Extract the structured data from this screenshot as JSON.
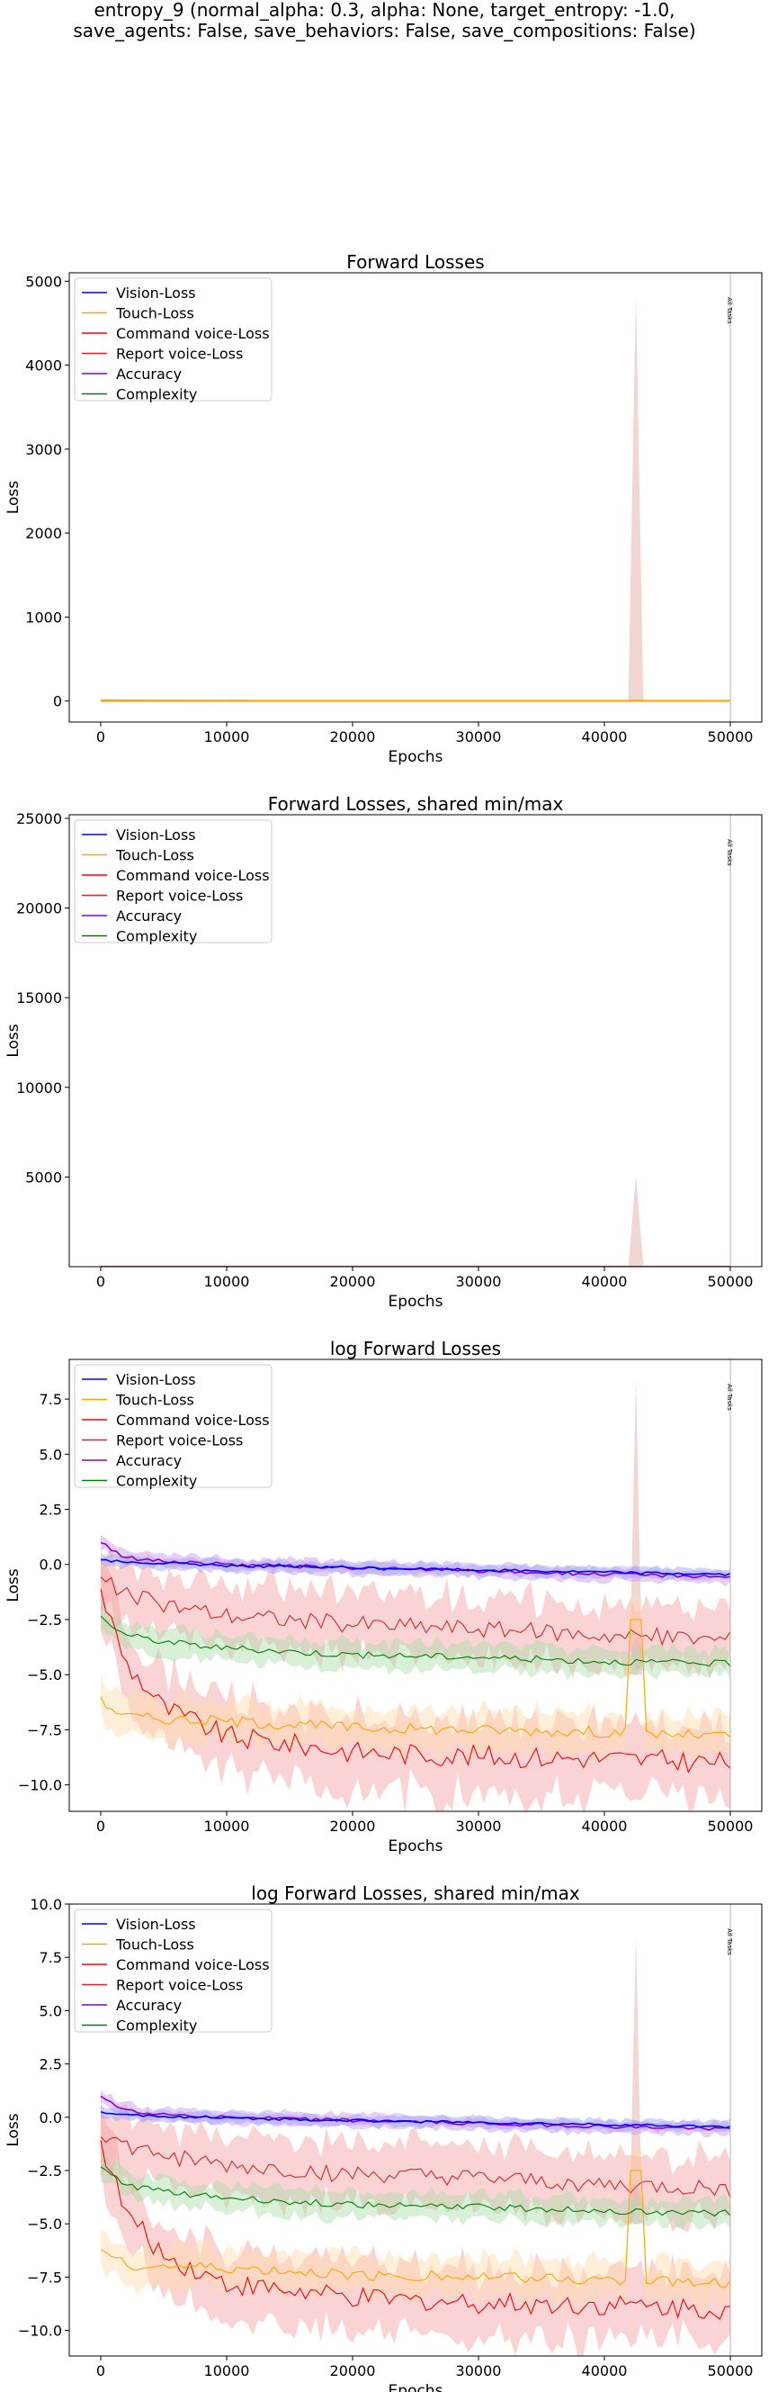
{
  "suptitle": {
    "line1": "entropy_9 (normal_alpha: 0.3, alpha: None, target_entropy: -1.0,",
    "line2": "save_agents: False, save_behaviors: False, save_compositions: False)"
  },
  "legend": [
    "Vision-Loss",
    "Touch-Loss",
    "Command voice-Loss",
    "Report voice-Loss",
    "Accuracy",
    "Complexity"
  ],
  "colors": {
    "Vision-Loss": "#0000ff",
    "Touch-Loss": "#ffa500",
    "Command voice-Loss": "#ff0000",
    "Report voice-Loss": "#d62728",
    "Accuracy": "#8b00c8",
    "Complexity": "#008000",
    "band_red": "#f4a0a0",
    "band_orange": "#ffdcaa",
    "band_blue": "#9ca0ff",
    "band_green": "#a8dca8",
    "band_purple": "#c894e6"
  },
  "annotation": "All Tasks",
  "chart_data": [
    {
      "type": "line",
      "title": "Forward Losses",
      "xlabel": "Epochs",
      "ylabel": "Loss",
      "xlim": [
        -2500,
        52500
      ],
      "ylim": [
        -250,
        5100
      ],
      "xticks": [
        0,
        10000,
        20000,
        30000,
        40000,
        50000
      ],
      "yticks": [
        0,
        1000,
        2000,
        3000,
        4000,
        5000
      ],
      "vline_x": 50000,
      "legend_position": "upper-left",
      "spike": {
        "x": 42500,
        "ymax": 4850,
        "halfwidth": 600
      },
      "series": [
        {
          "name": "Vision-Loss",
          "values": [
            1.2,
            1.1,
            1.0,
            0.9
          ]
        },
        {
          "name": "Touch-Loss",
          "values": [
            0.002,
            0.001,
            0.001,
            0.001
          ]
        },
        {
          "name": "Command voice-Loss",
          "values": [
            0.5,
            0.01,
            0.001,
            0.0001
          ]
        },
        {
          "name": "Report voice-Loss",
          "values": [
            0.3,
            0.1,
            0.05,
            0.03
          ]
        },
        {
          "name": "Accuracy",
          "values": [
            2.5,
            1.1,
            1.0,
            0.9
          ]
        },
        {
          "name": "Complexity",
          "values": [
            0.1,
            0.02,
            0.015,
            0.01
          ]
        }
      ]
    },
    {
      "type": "line",
      "title": "Forward Losses, shared min/max",
      "xlabel": "Epochs",
      "ylabel": "Loss",
      "xlim": [
        -2500,
        52500
      ],
      "ylim": [
        0,
        25200
      ],
      "xticks": [
        0,
        10000,
        20000,
        30000,
        40000,
        50000
      ],
      "yticks": [
        5000,
        10000,
        15000,
        20000,
        25000
      ],
      "vline_x": 50000,
      "legend_position": "upper-left",
      "spike": {
        "x": 42500,
        "ymax": 5100,
        "halfwidth": 600
      },
      "series": [
        {
          "name": "Vision-Loss",
          "values": [
            1.2,
            1.1,
            1.0,
            0.9
          ]
        },
        {
          "name": "Touch-Loss",
          "values": [
            0.002,
            0.001,
            0.001,
            0.001
          ]
        },
        {
          "name": "Command voice-Loss",
          "values": [
            0.5,
            0.01,
            0.001,
            0.0001
          ]
        },
        {
          "name": "Report voice-Loss",
          "values": [
            0.3,
            0.1,
            0.05,
            0.03
          ]
        },
        {
          "name": "Accuracy",
          "values": [
            2.5,
            1.1,
            1.0,
            0.9
          ]
        },
        {
          "name": "Complexity",
          "values": [
            0.1,
            0.02,
            0.015,
            0.01
          ]
        }
      ]
    },
    {
      "type": "line",
      "title": "log Forward Losses",
      "xlabel": "Epochs",
      "ylabel": "Loss",
      "xlim": [
        -2500,
        52500
      ],
      "ylim": [
        -11.2,
        9.3
      ],
      "xticks": [
        0,
        10000,
        20000,
        30000,
        40000,
        50000
      ],
      "yticks": [
        -10.0,
        -7.5,
        -5.0,
        -2.5,
        0.0,
        2.5,
        5.0,
        7.5
      ],
      "vline_x": 50000,
      "legend_position": "upper-left",
      "spike": {
        "x": 42500,
        "ymax": 8.5,
        "halfwidth": 500
      },
      "series": [
        {
          "name": "Vision-Loss",
          "x": [
            0,
            2000,
            5000,
            10000,
            20000,
            30000,
            40000,
            50000
          ],
          "values": [
            0.2,
            0.1,
            0.05,
            -0.05,
            -0.15,
            -0.25,
            -0.35,
            -0.45
          ]
        },
        {
          "name": "Touch-Loss",
          "x": [
            0,
            2000,
            5000,
            10000,
            20000,
            30000,
            40000,
            50000
          ],
          "values": [
            -6.2,
            -6.9,
            -7.0,
            -7.1,
            -7.4,
            -7.5,
            -7.6,
            -7.8
          ]
        },
        {
          "name": "Command voice-Loss",
          "x": [
            0,
            2000,
            5000,
            10000,
            20000,
            30000,
            40000,
            50000
          ],
          "values": [
            -1.2,
            -4.5,
            -6.5,
            -7.8,
            -8.5,
            -8.7,
            -8.8,
            -9.0
          ]
        },
        {
          "name": "Report voice-Loss",
          "x": [
            0,
            2000,
            5000,
            10000,
            20000,
            30000,
            40000,
            50000
          ],
          "values": [
            -0.7,
            -1.4,
            -1.8,
            -2.3,
            -2.7,
            -2.9,
            -3.2,
            -3.4
          ]
        },
        {
          "name": "Accuracy",
          "x": [
            0,
            2000,
            5000,
            10000,
            20000,
            30000,
            40000,
            50000
          ],
          "values": [
            1.0,
            0.3,
            0.15,
            0.0,
            -0.15,
            -0.3,
            -0.45,
            -0.55
          ]
        },
        {
          "name": "Complexity",
          "x": [
            0,
            2000,
            5000,
            10000,
            20000,
            30000,
            40000,
            50000
          ],
          "values": [
            -2.4,
            -3.2,
            -3.5,
            -3.8,
            -4.1,
            -4.2,
            -4.4,
            -4.5
          ]
        }
      ]
    },
    {
      "type": "line",
      "title": "log Forward Losses, shared min/max",
      "xlabel": "Epochs",
      "ylabel": "Loss",
      "xlim": [
        -2500,
        52500
      ],
      "ylim": [
        -11.2,
        10.0
      ],
      "xticks": [
        0,
        10000,
        20000,
        30000,
        40000,
        50000
      ],
      "yticks": [
        -10.0,
        -7.5,
        -5.0,
        -2.5,
        0.0,
        2.5,
        5.0,
        7.5,
        10.0
      ],
      "vline_x": 50000,
      "legend_position": "upper-left",
      "spike": {
        "x": 42500,
        "ymax": 8.5,
        "halfwidth": 500
      },
      "series": [
        {
          "name": "Vision-Loss",
          "x": [
            0,
            2000,
            5000,
            10000,
            20000,
            30000,
            40000,
            50000
          ],
          "values": [
            0.2,
            0.1,
            0.05,
            -0.05,
            -0.15,
            -0.25,
            -0.35,
            -0.45
          ]
        },
        {
          "name": "Touch-Loss",
          "x": [
            0,
            2000,
            5000,
            10000,
            20000,
            30000,
            40000,
            50000
          ],
          "values": [
            -6.2,
            -6.9,
            -7.0,
            -7.1,
            -7.4,
            -7.5,
            -7.6,
            -7.8
          ]
        },
        {
          "name": "Command voice-Loss",
          "x": [
            0,
            2000,
            5000,
            10000,
            20000,
            30000,
            40000,
            50000
          ],
          "values": [
            -1.2,
            -4.5,
            -6.5,
            -7.8,
            -8.5,
            -8.7,
            -8.8,
            -9.0
          ]
        },
        {
          "name": "Report voice-Loss",
          "x": [
            0,
            2000,
            5000,
            10000,
            20000,
            30000,
            40000,
            50000
          ],
          "values": [
            -0.7,
            -1.4,
            -1.8,
            -2.3,
            -2.7,
            -2.9,
            -3.2,
            -3.4
          ]
        },
        {
          "name": "Accuracy",
          "x": [
            0,
            2000,
            5000,
            10000,
            20000,
            30000,
            40000,
            50000
          ],
          "values": [
            1.0,
            0.3,
            0.15,
            0.0,
            -0.15,
            -0.3,
            -0.45,
            -0.55
          ]
        },
        {
          "name": "Complexity",
          "x": [
            0,
            2000,
            5000,
            10000,
            20000,
            30000,
            40000,
            50000
          ],
          "values": [
            -2.4,
            -3.2,
            -3.5,
            -3.8,
            -4.1,
            -4.2,
            -4.4,
            -4.5
          ]
        }
      ]
    }
  ]
}
